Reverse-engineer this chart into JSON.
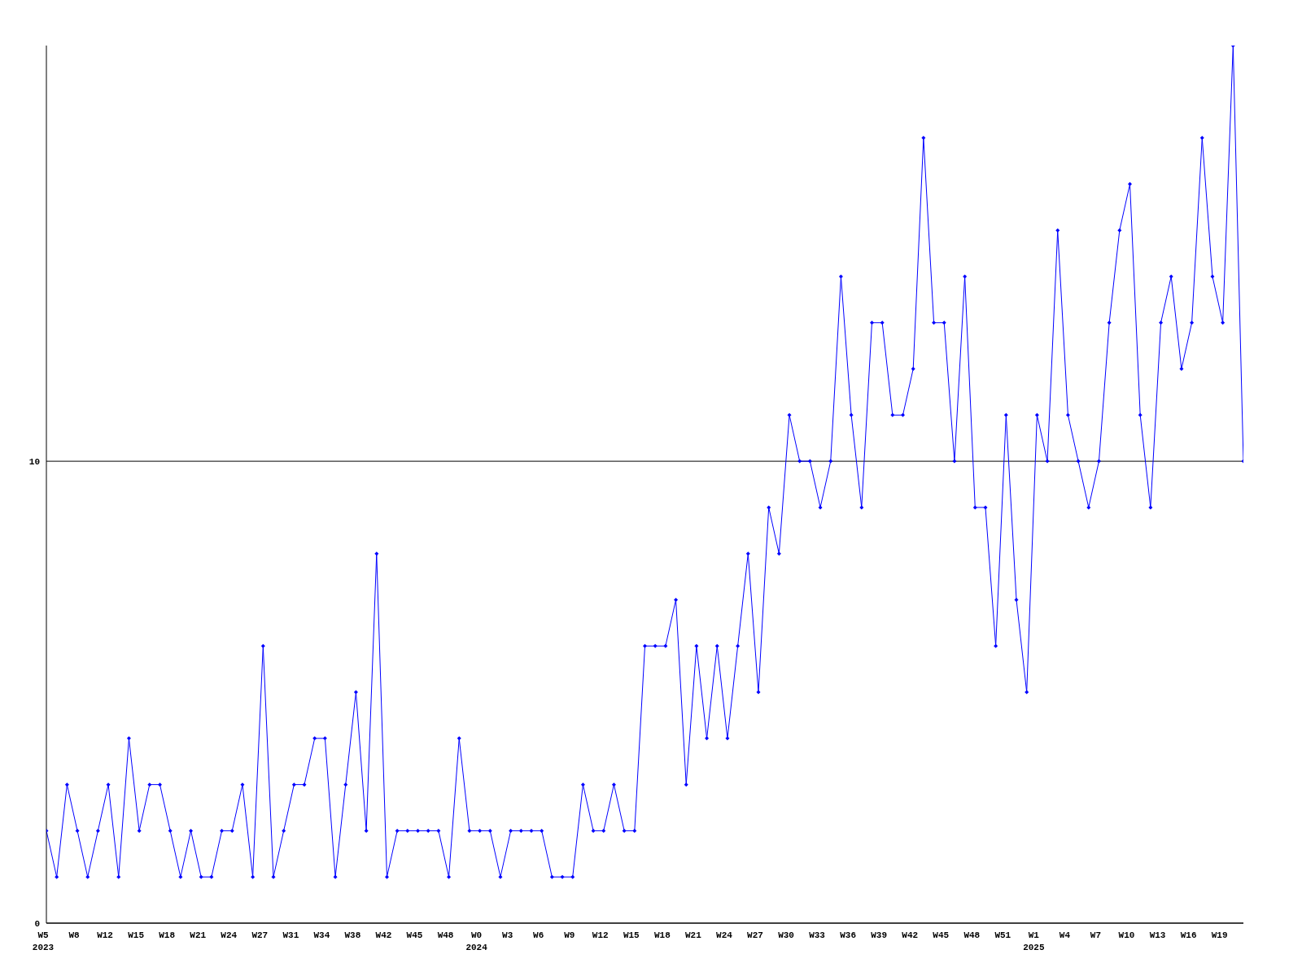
{
  "chart_data": {
    "type": "line",
    "categories": [
      "W5\n2023",
      null,
      null,
      "W8",
      null,
      null,
      "W12",
      null,
      null,
      "W15",
      null,
      null,
      "W18",
      null,
      null,
      "W21",
      null,
      null,
      "W24",
      null,
      null,
      "W27",
      null,
      null,
      "W31",
      null,
      null,
      "W34",
      null,
      null,
      "W38",
      null,
      null,
      "W42",
      null,
      null,
      "W45",
      null,
      null,
      "W48",
      null,
      null,
      "W0\n2024",
      null,
      null,
      "W3",
      null,
      null,
      "W6",
      null,
      null,
      "W9",
      null,
      null,
      "W12",
      null,
      null,
      "W15",
      null,
      null,
      "W18",
      null,
      null,
      "W21",
      null,
      null,
      "W24",
      null,
      null,
      "W27",
      null,
      null,
      "W30",
      null,
      null,
      "W33",
      null,
      null,
      "W36",
      null,
      null,
      "W39",
      null,
      null,
      "W42",
      null,
      null,
      "W45",
      null,
      null,
      "W48",
      null,
      null,
      "W51",
      null,
      null,
      "W1\n2025",
      null,
      null,
      "W4",
      null,
      null,
      "W7",
      null,
      null,
      "W10",
      null,
      null,
      "W13",
      null,
      null,
      "W16",
      null,
      null,
      "W19",
      null,
      null
    ],
    "series": [
      {
        "color": "#0000ff",
        "values": [
          2,
          1,
          3,
          2,
          1,
          2,
          3,
          1,
          4,
          2,
          3,
          3,
          2,
          1,
          2,
          1,
          1,
          2,
          2,
          3,
          1,
          6,
          1,
          2,
          3,
          3,
          4,
          4,
          1,
          3,
          5,
          2,
          8,
          1,
          2,
          2,
          2,
          2,
          2,
          1,
          4,
          2,
          2,
          2,
          1,
          2,
          2,
          2,
          2,
          1,
          1,
          1,
          3,
          2,
          2,
          3,
          2,
          2,
          6,
          6,
          6,
          7,
          3,
          6,
          4,
          6,
          4,
          6,
          8,
          5,
          9,
          8,
          11,
          10,
          10,
          9,
          10,
          14,
          11,
          9,
          13,
          13,
          11,
          11,
          12,
          17,
          13,
          13,
          10,
          14,
          9,
          9,
          6,
          11,
          7,
          5,
          11,
          10,
          15,
          11,
          10,
          9,
          10,
          13,
          15,
          16,
          11,
          9,
          13,
          14,
          12,
          13,
          17,
          14,
          13,
          19,
          10
        ]
      }
    ],
    "ylim": [
      0,
      19
    ],
    "yticks": [
      0,
      10
    ],
    "grid": "y",
    "marker": "diamond",
    "line_style": "solid"
  }
}
